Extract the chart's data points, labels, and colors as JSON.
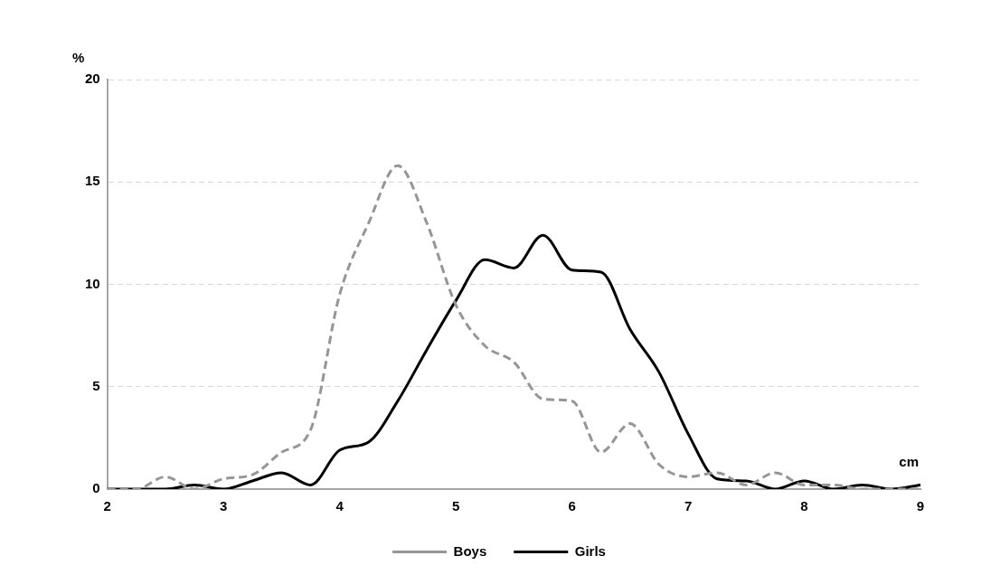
{
  "chart_data": {
    "type": "line",
    "xlabel": "cm",
    "ylabel": "%",
    "x": [
      2,
      2.25,
      2.5,
      2.75,
      3,
      3.25,
      3.5,
      3.75,
      4,
      4.25,
      4.5,
      4.75,
      5,
      5.25,
      5.5,
      5.75,
      6,
      6.25,
      6.5,
      6.75,
      7,
      7.25,
      7.5,
      7.75,
      8,
      8.25,
      8.5,
      8.75,
      9
    ],
    "series": [
      {
        "name": "Boys",
        "color": "#969696",
        "line_style": "dashed",
        "values": [
          0,
          0,
          0.6,
          0,
          0.5,
          0.7,
          1.8,
          2.9,
          9.5,
          13,
          15.8,
          13,
          9,
          7,
          6.2,
          4.4,
          4.3,
          1.8,
          3.2,
          1.2,
          0.6,
          0.8,
          0.2,
          0.8,
          0.2,
          0.2,
          0,
          0,
          0
        ]
      },
      {
        "name": "Girls",
        "color": "#000000",
        "line_style": "solid",
        "values": [
          0,
          0,
          0,
          0.2,
          0,
          0.4,
          0.8,
          0.2,
          1.9,
          2.3,
          4.3,
          6.8,
          9.2,
          11.2,
          10.8,
          12.4,
          10.7,
          10.6,
          7.8,
          5.7,
          2.7,
          0.5,
          0.4,
          0,
          0.4,
          0,
          0.2,
          0,
          0.2
        ]
      }
    ],
    "xlim": [
      2,
      9
    ],
    "xticks": [
      2,
      3,
      4,
      5,
      6,
      7,
      8,
      9
    ],
    "ylim": [
      0,
      20
    ],
    "yticks": [
      0,
      5,
      10,
      15,
      20
    ],
    "grid": "y",
    "legend": "bottom",
    "marker": "none"
  }
}
